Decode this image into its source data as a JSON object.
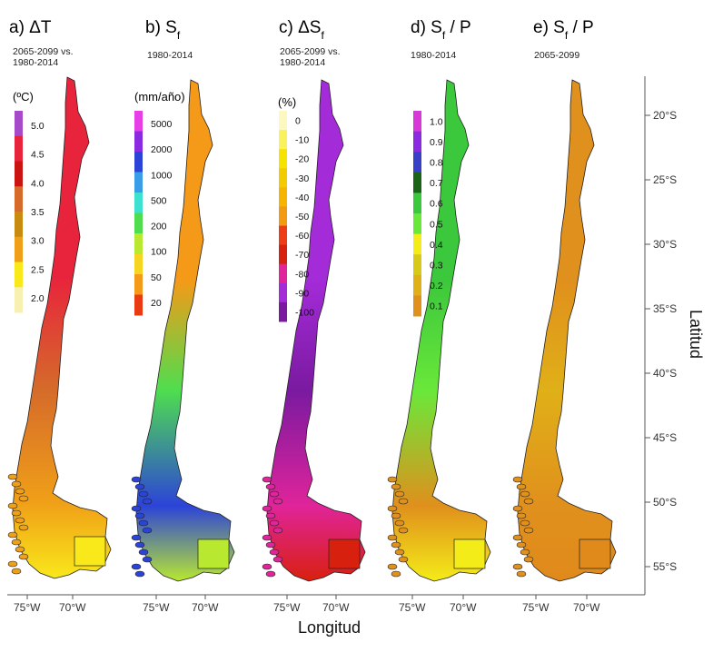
{
  "figure": {
    "x_axis_label": "Longitud",
    "y_axis_label": "Latitud",
    "lon_ticks": [
      "75°W",
      "70°W"
    ],
    "lat_ticks": [
      "20°S",
      "25°S",
      "30°S",
      "35°S",
      "40°S",
      "45°S",
      "50°S",
      "55°S"
    ]
  },
  "panels": [
    {
      "id": "a",
      "title": "a) ΔT",
      "subtitle": [
        "2065-2099 vs.",
        "1980-2014"
      ],
      "unit": "(ºC)",
      "legend_labels": [
        "5.0",
        "4.5",
        "4.0",
        "3.5",
        "3.0",
        "2.5",
        "2.0"
      ],
      "legend_colors": [
        "#a64ac9",
        "#e8243c",
        "#c91412",
        "#d56a2a",
        "#c98a10",
        "#f0a018",
        "#f9e81a",
        "#f7f0b0"
      ],
      "map_colors": {
        "north": "#e8243c",
        "mid": "#d56a2a",
        "south": "#f0a018",
        "tip": "#f9e81a"
      }
    },
    {
      "id": "b",
      "title": "b) Sf",
      "subtitle": [
        "1980-2014"
      ],
      "unit": "(mm/año)",
      "legend_labels": [
        "5000",
        "2000",
        "1000",
        "500",
        "200",
        "100",
        "50",
        "20"
      ],
      "legend_colors": [
        "#e83ee8",
        "#8a2be2",
        "#2c43d8",
        "#3a9de8",
        "#3ee0d0",
        "#4fdd4f",
        "#b8e830",
        "#f6d520",
        "#f49a18",
        "#ea3a12"
      ],
      "map_colors": {
        "north": "#f49a18",
        "mid": "#4fdd4f",
        "south": "#2c43d8",
        "tip": "#b8e830"
      }
    },
    {
      "id": "c",
      "title": "c) ΔSf",
      "subtitle": [
        "2065-2099 vs.",
        "1980-2014"
      ],
      "unit": "(%)",
      "legend_labels": [
        "0",
        "-10",
        "-20",
        "-30",
        "-40",
        "-50",
        "-60",
        "-70",
        "-80",
        "-90",
        "-100"
      ],
      "legend_colors": [
        "#fdf8c0",
        "#faf25c",
        "#f6e400",
        "#f2cc00",
        "#f5b500",
        "#f29a10",
        "#ee3c14",
        "#d8200e",
        "#e0249a",
        "#a42bd8",
        "#7a1aa0"
      ],
      "map_colors": {
        "north": "#a42bd8",
        "mid": "#7a1aa0",
        "south": "#e0249a",
        "tip": "#d8200e"
      }
    },
    {
      "id": "d",
      "title": "d) Sf / P",
      "subtitle": [
        "1980-2014"
      ],
      "unit": "",
      "legend_labels": [
        "1.0",
        "0.9",
        "0.8",
        "0.7",
        "0.6",
        "0.5",
        "0.4",
        "0.3",
        "0.2",
        "0.1"
      ],
      "legend_colors": [
        "#d838d8",
        "#8a2be2",
        "#3a3fc8",
        "#1a6418",
        "#3cc83c",
        "#6ae83a",
        "#f4ec18",
        "#d8c818",
        "#e0b018",
        "#e0901c"
      ],
      "map_colors": {
        "north": "#3cc83c",
        "mid": "#6ae83a",
        "south": "#e0901c",
        "tip": "#f4ec18"
      }
    },
    {
      "id": "e",
      "title": "e) Sf / P",
      "subtitle": [
        "2065-2099"
      ],
      "unit": "",
      "legend_labels": [],
      "legend_colors": [],
      "map_colors": {
        "north": "#e0901c",
        "mid": "#e0b018",
        "south": "#e0901c",
        "tip": "#e08a1c"
      }
    }
  ]
}
